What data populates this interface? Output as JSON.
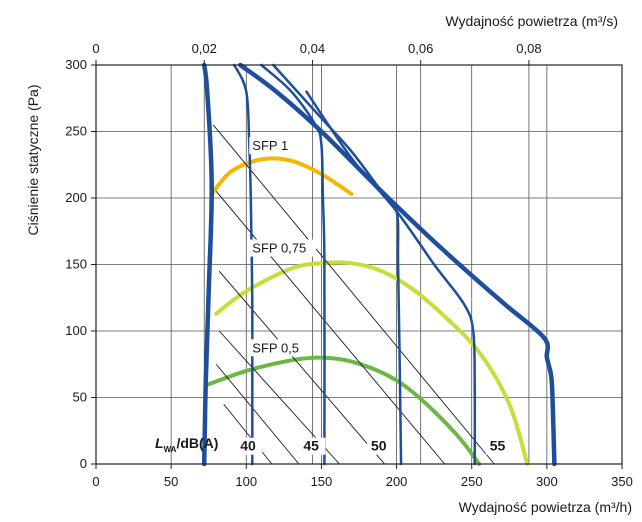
{
  "chart_data": {
    "type": "line",
    "x_top_label": "Wydajność powietrza (m³/s)",
    "x_bottom_label": "Wydajność powietrza (m³/h)",
    "y_label": "Ciśnienie statyczne (Pa)",
    "x_bottom_ticks": [
      "0",
      "50",
      "100",
      "150",
      "200",
      "250",
      "300",
      "350"
    ],
    "x_top_ticks": [
      "0",
      "0,02",
      "0,04",
      "0,06",
      "0,08"
    ],
    "y_ticks": [
      "0",
      "50",
      "100",
      "150",
      "200",
      "250",
      "300"
    ],
    "xlim": [
      0,
      350
    ],
    "ylim": [
      0,
      300
    ],
    "x_top_lim": [
      0,
      0.0972
    ],
    "grid": true,
    "colors": {
      "fan_curve": "#1e4f9c",
      "sfp_1": "#f5b800",
      "sfp_075": "#c8dc3c",
      "sfp_05": "#6cb846",
      "sound_line": "#1a1a1a",
      "grid": "#555555"
    },
    "fan_curves": [
      {
        "width": 4.5,
        "points": [
          [
            72,
            0
          ],
          [
            73,
            60
          ],
          [
            75,
            130
          ],
          [
            77,
            210
          ],
          [
            74,
            280
          ],
          [
            72,
            300
          ]
        ]
      },
      {
        "width": 4.5,
        "points": [
          [
            96,
            300
          ],
          [
            120,
            280
          ],
          [
            150,
            250
          ],
          [
            190,
            205
          ],
          [
            230,
            162
          ],
          [
            270,
            122
          ],
          [
            298,
            95
          ],
          [
            300,
            80
          ],
          [
            303,
            65
          ],
          [
            304,
            40
          ],
          [
            305,
            0
          ]
        ]
      },
      {
        "width": 2.5,
        "points": [
          [
            92,
            300
          ],
          [
            100,
            280
          ],
          [
            102,
            240
          ],
          [
            103,
            200
          ],
          [
            104,
            120
          ],
          [
            104,
            50
          ],
          [
            104,
            0
          ]
        ]
      },
      {
        "width": 2.5,
        "points": [
          [
            110,
            300
          ],
          [
            130,
            280
          ],
          [
            146,
            255
          ],
          [
            150,
            240
          ],
          [
            151,
            200
          ],
          [
            152,
            150
          ],
          [
            152,
            0
          ]
        ]
      },
      {
        "width": 2.5,
        "points": [
          [
            118,
            300
          ],
          [
            150,
            260
          ],
          [
            170,
            235
          ],
          [
            190,
            205
          ],
          [
            200,
            190
          ],
          [
            201,
            150
          ],
          [
            202,
            80
          ],
          [
            203,
            0
          ]
        ]
      },
      {
        "width": 2.5,
        "points": [
          [
            140,
            280
          ],
          [
            170,
            230
          ],
          [
            200,
            190
          ],
          [
            225,
            150
          ],
          [
            245,
            120
          ],
          [
            251,
            100
          ],
          [
            252,
            60
          ],
          [
            252,
            0
          ]
        ]
      }
    ],
    "sfp_curves": [
      {
        "label": "SFP 1",
        "color": "#f5b800",
        "label_at": [
          104,
          236
        ],
        "points": [
          [
            77,
            203
          ],
          [
            90,
            220
          ],
          [
            110,
            229
          ],
          [
            130,
            228
          ],
          [
            150,
            218
          ],
          [
            170,
            203
          ]
        ]
      },
      {
        "label": "SFP 0,75",
        "color": "#c8dc3c",
        "label_at": [
          104,
          159
        ],
        "points": [
          [
            80,
            113
          ],
          [
            100,
            130
          ],
          [
            130,
            147
          ],
          [
            150,
            151
          ],
          [
            170,
            151
          ],
          [
            190,
            145
          ],
          [
            210,
            132
          ],
          [
            230,
            113
          ],
          [
            255,
            84
          ],
          [
            275,
            45
          ],
          [
            287,
            0
          ]
        ]
      },
      {
        "label": "SFP 0,5",
        "color": "#6cb846",
        "label_at": [
          104,
          84
        ],
        "points": [
          [
            75,
            60
          ],
          [
            100,
            70
          ],
          [
            130,
            78
          ],
          [
            150,
            80
          ],
          [
            170,
            77
          ],
          [
            195,
            66
          ],
          [
            215,
            50
          ],
          [
            240,
            22
          ],
          [
            255,
            0
          ]
        ]
      }
    ],
    "sound_lines": [
      {
        "from": [
          78,
          255
        ],
        "to": [
          265,
          0
        ]
      },
      {
        "from": [
          80,
          205
        ],
        "to": [
          232,
          0
        ]
      },
      {
        "from": [
          82,
          145
        ],
        "to": [
          192,
          0
        ]
      },
      {
        "from": [
          82,
          100
        ],
        "to": [
          162,
          0
        ]
      },
      {
        "from": [
          80,
          75
        ],
        "to": [
          135,
          0
        ]
      },
      {
        "from": [
          85,
          45
        ],
        "to": [
          117,
          0
        ]
      }
    ],
    "annotations": {
      "lwa_main": "L",
      "lwa_sub": "WA",
      "lwa_tail": "/dB(A)",
      "db_labels": [
        {
          "text": "40",
          "at": [
            96,
            10
          ]
        },
        {
          "text": "45",
          "at": [
            138,
            10
          ]
        },
        {
          "text": "50",
          "at": [
            183,
            10
          ]
        },
        {
          "text": "55",
          "at": [
            262,
            10
          ]
        }
      ]
    }
  }
}
